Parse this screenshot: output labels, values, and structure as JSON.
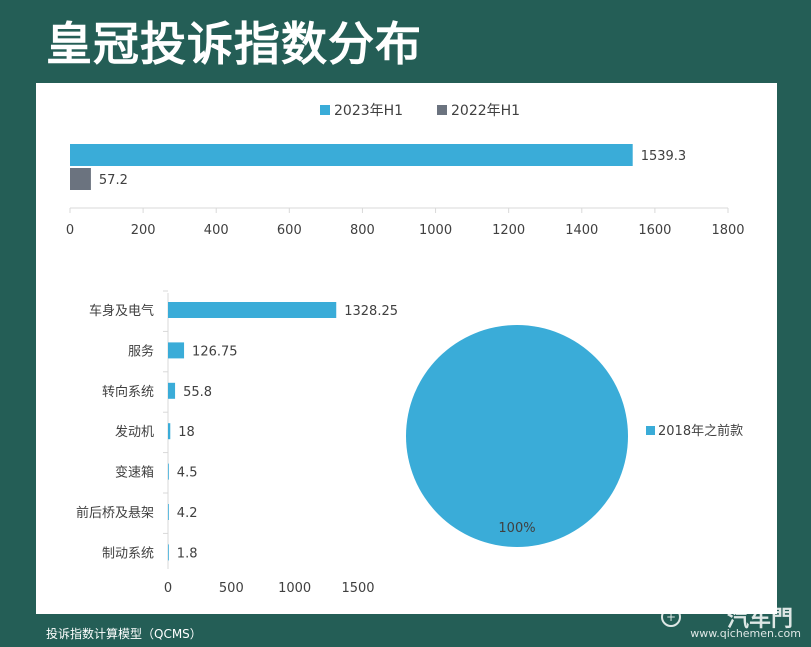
{
  "page": {
    "title": "皇冠投诉指数分布",
    "footer": "投诉指数计算模型（QCMS）",
    "watermark": {
      "brand": "汽车門",
      "url": "www.qichemen.com"
    }
  },
  "colors": {
    "blue": "#3aacd8",
    "gray": "#6b737f",
    "axis": "#d9d9d9",
    "text": "#404040"
  },
  "chart_data": [
    {
      "type": "bar",
      "orientation": "horizontal",
      "series": [
        {
          "name": "2023年H1",
          "values": [
            1539.3
          ],
          "labels": [
            "1539.3"
          ],
          "color": "#3aacd8"
        },
        {
          "name": "2022年H1",
          "values": [
            57.2
          ],
          "labels": [
            "57.2"
          ],
          "color": "#6b737f"
        }
      ],
      "xlim": [
        0,
        1800
      ],
      "xticks": [
        "0",
        "200",
        "400",
        "600",
        "800",
        "1000",
        "1200",
        "1400",
        "1600",
        "1800"
      ],
      "legend": "top"
    },
    {
      "type": "bar",
      "orientation": "horizontal",
      "categories": [
        "车身及电气",
        "服务",
        "转向系统",
        "发动机",
        "变速箱",
        "前后桥及悬架",
        "制动系统"
      ],
      "values": [
        1328.25,
        126.75,
        55.8,
        18,
        4.5,
        4.2,
        1.8
      ],
      "labels": [
        "1328.25",
        "126.75",
        "55.8",
        "18",
        "4.5",
        "4.2",
        "1.8"
      ],
      "xlim": [
        0,
        1500
      ],
      "xticks": [
        "0",
        "500",
        "1000",
        "1500"
      ],
      "color": "#3aacd8"
    },
    {
      "type": "pie",
      "slices": [
        {
          "label": "2018年之前款",
          "value": 100,
          "display": "100%"
        }
      ],
      "legend": "right",
      "color": "#3aacd8"
    }
  ]
}
